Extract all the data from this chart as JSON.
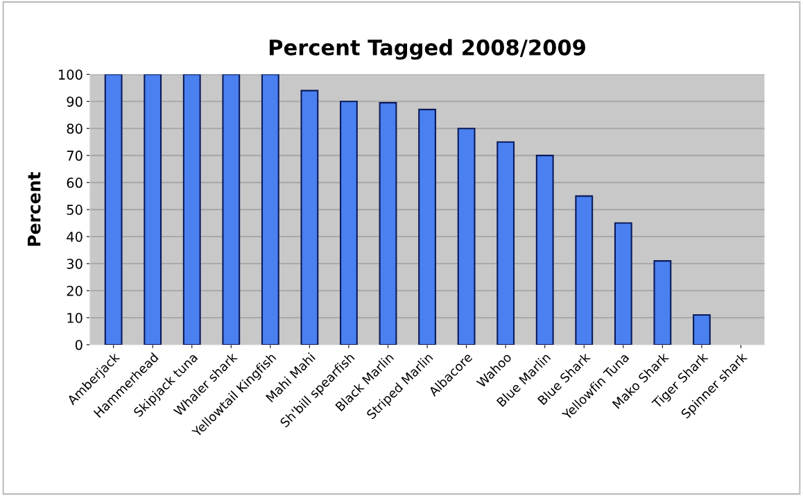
{
  "chart_data": {
    "type": "bar",
    "title": "Percent Tagged 2008/2009",
    "ylabel": "Percent",
    "categories": [
      "Amberjack",
      "Hammerhead",
      "Skipjack tuna",
      "Whaler shark",
      "Yellowtail Kingfish",
      "Mahi Mahi",
      "Sh'bill spearfish",
      "Black Marlin",
      "Striped Marlin",
      "Albacore",
      "Wahoo",
      "Blue Marlin",
      "Blue Shark",
      "Yellowfin Tuna",
      "Mako Shark",
      "Tiger Shark",
      "Spinner shark"
    ],
    "values": [
      100,
      100,
      100,
      100,
      100,
      94,
      90,
      89.5,
      87,
      80,
      75,
      70,
      55,
      45,
      31,
      11,
      null
    ],
    "color": "#4a80f0",
    "ylim": [
      0,
      100
    ],
    "yticks": [
      0,
      10,
      20,
      30,
      40,
      50,
      60,
      70,
      80,
      90,
      100
    ],
    "grid": "y",
    "legend": false
  }
}
